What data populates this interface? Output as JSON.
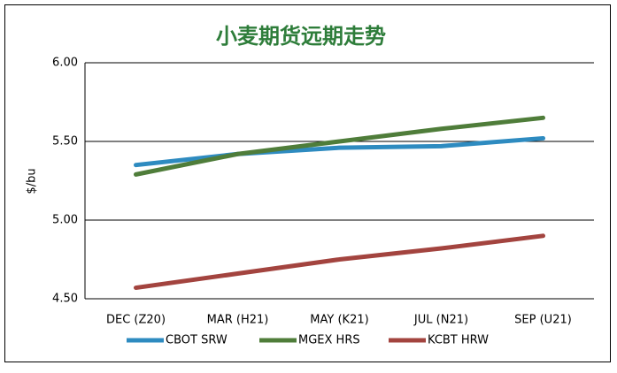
{
  "chart_data": {
    "type": "line",
    "title": "小麦期货远期走势",
    "y_label": "$/bu",
    "categories": [
      "DEC (Z20)",
      "MAR (H21)",
      "MAY (K21)",
      "JUL (N21)",
      "SEP (U21)"
    ],
    "series": [
      {
        "name": "CBOT SRW",
        "color": "#2e8bc0",
        "values": [
          5.35,
          5.42,
          5.46,
          5.47,
          5.52
        ]
      },
      {
        "name": "MGEX HRS",
        "color": "#4f7d3a",
        "values": [
          5.29,
          5.42,
          5.5,
          5.58,
          5.65
        ]
      },
      {
        "name": "KCBT HRW",
        "color": "#a3443f",
        "values": [
          4.57,
          4.66,
          4.75,
          4.82,
          4.9
        ]
      }
    ],
    "ylim": [
      4.5,
      6.0
    ],
    "yticks": [
      {
        "value": 4.5,
        "label": "4.50"
      },
      {
        "value": 5.0,
        "label": "5.00"
      },
      {
        "value": 5.5,
        "label": "5.50"
      },
      {
        "value": 6.0,
        "label": "6.00"
      }
    ],
    "grid": true,
    "legend": "bottom"
  }
}
